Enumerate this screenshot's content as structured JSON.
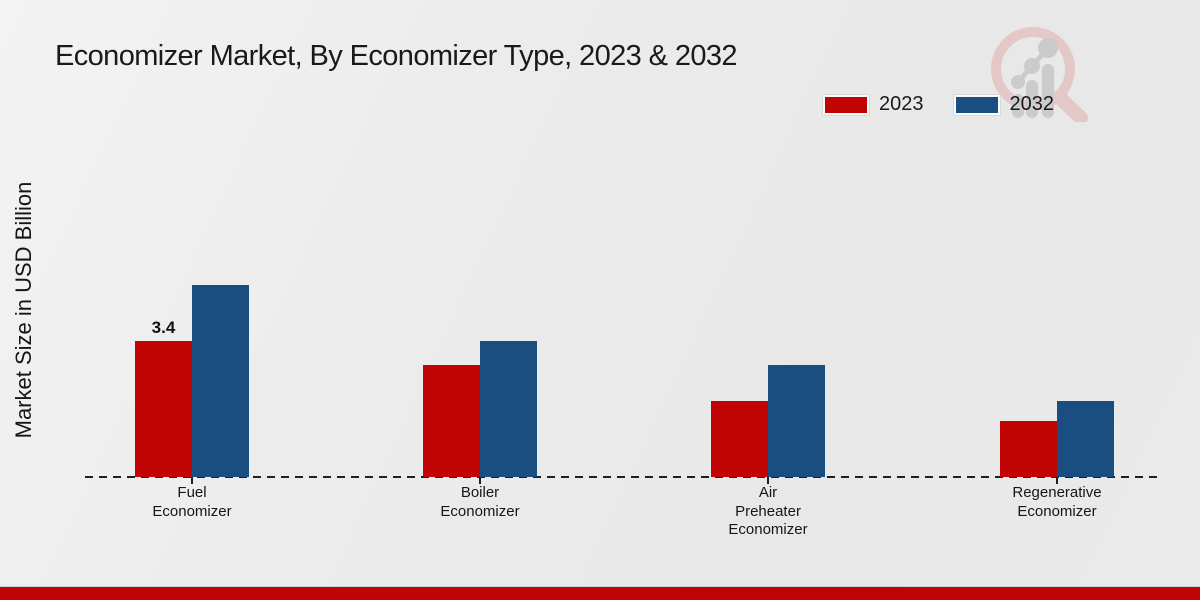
{
  "header": {
    "title": "Economizer Market, By Economizer Type, 2023 & 2032"
  },
  "axis": {
    "y_label": "Market Size in USD Billion"
  },
  "legend": {
    "items": [
      {
        "label": "2023",
        "color": "#c00404"
      },
      {
        "label": "2032",
        "color": "#1b4e80"
      }
    ]
  },
  "watermark": {
    "icon": "magnifier-growth-chart-logo"
  },
  "footer": {
    "band_color": "#bd0505"
  },
  "chart_data": {
    "type": "bar",
    "title": "Economizer Market, By Economizer Type, 2023 & 2032",
    "ylabel": "Market Size in USD Billion",
    "xlabel": "",
    "ylim": [
      0,
      5
    ],
    "grid": false,
    "legend_position": "top-right",
    "baseline_style": "dashed",
    "categories": [
      "Fuel Economizer",
      "Boiler Economizer",
      "Air Preheater Economizer",
      "Regenerative Economizer"
    ],
    "category_label_lines": [
      [
        "Fuel",
        "Economizer"
      ],
      [
        "Boiler",
        "Economizer"
      ],
      [
        "Air",
        "Preheater",
        "Economizer"
      ],
      [
        "Regenerative",
        "Economizer"
      ]
    ],
    "series": [
      {
        "name": "2023",
        "color": "#c00404",
        "values": [
          3.4,
          2.8,
          1.9,
          1.4
        ]
      },
      {
        "name": "2032",
        "color": "#1b4e80",
        "values": [
          4.8,
          3.4,
          2.8,
          1.9
        ]
      }
    ],
    "value_labels": [
      {
        "category_index": 0,
        "series_index": 0,
        "text": "3.4"
      }
    ]
  }
}
